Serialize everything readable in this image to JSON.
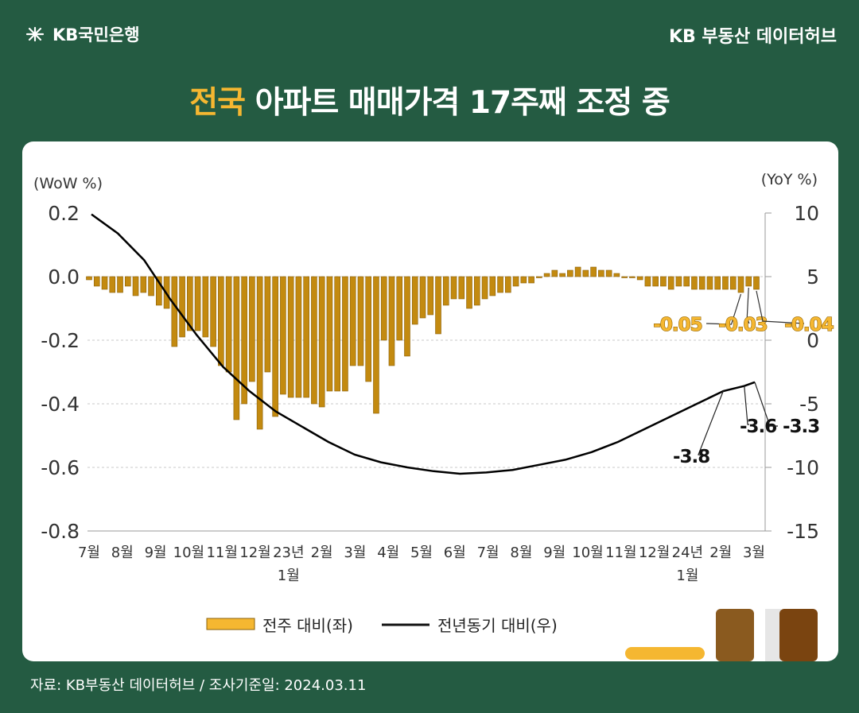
{
  "brand": {
    "logo_text": "KB국민은행",
    "right_text": "KB 부동산 데이터허브"
  },
  "headline": {
    "highlight": "전국",
    "rest": " 아파트 매매가격 17주째 조정 중"
  },
  "footer": {
    "source": "자료: KB부동산 데이터허브 / 조사기준일: 2024.03.11"
  },
  "colors": {
    "background": "#245b42",
    "bar": "#c38a10",
    "bar_border": "#8a6009",
    "line": "#000000",
    "highlight": "#f5b731"
  },
  "chart_data": {
    "type": "bar",
    "ylabel_left": "(WoW %)",
    "ylabel_right": "(YoY %)",
    "ylim_left": [
      -0.8,
      0.2
    ],
    "ylim_right": [
      -15,
      10
    ],
    "yticks_left": [
      "0.2",
      "0.0",
      "-0.2",
      "-0.4",
      "-0.6",
      "-0.8"
    ],
    "yticks_right": [
      "10",
      "5",
      "0",
      "-5",
      "-10",
      "-15"
    ],
    "grid": true,
    "x_tick_labels": [
      "7월",
      "8월",
      "9월",
      "10월",
      "11월",
      "12월",
      "23년",
      "2월",
      "3월",
      "4월",
      "5월",
      "6월",
      "7월",
      "8월",
      "9월",
      "10월",
      "11월",
      "12월",
      "24년",
      "2월",
      "3월"
    ],
    "x_tick_sublabels": [
      {
        "index": 6,
        "text": "1월"
      },
      {
        "index": 18,
        "text": "1월"
      }
    ],
    "series": [
      {
        "name": "전주 대비(좌)",
        "axis": "left",
        "type": "bar",
        "values": [
          -0.01,
          -0.03,
          -0.04,
          -0.05,
          -0.05,
          -0.03,
          -0.06,
          -0.05,
          -0.06,
          -0.09,
          -0.1,
          -0.22,
          -0.19,
          -0.17,
          -0.17,
          -0.19,
          -0.22,
          -0.28,
          -0.3,
          -0.45,
          -0.4,
          -0.33,
          -0.48,
          -0.3,
          -0.44,
          -0.37,
          -0.38,
          -0.38,
          -0.38,
          -0.4,
          -0.41,
          -0.36,
          -0.36,
          -0.36,
          -0.28,
          -0.28,
          -0.33,
          -0.43,
          -0.2,
          -0.28,
          -0.2,
          -0.25,
          -0.15,
          -0.13,
          -0.12,
          -0.18,
          -0.09,
          -0.07,
          -0.07,
          -0.1,
          -0.09,
          -0.07,
          -0.06,
          -0.05,
          -0.05,
          -0.03,
          -0.02,
          -0.02,
          0.0,
          0.01,
          0.02,
          0.01,
          0.02,
          0.03,
          0.02,
          0.03,
          0.02,
          0.02,
          0.01,
          0.0,
          0.0,
          -0.01,
          -0.03,
          -0.03,
          -0.03,
          -0.04,
          -0.03,
          -0.03,
          -0.04,
          -0.04,
          -0.04,
          -0.04,
          -0.04,
          -0.04,
          -0.05,
          -0.03,
          -0.04
        ]
      },
      {
        "name": "전년동기 대비(우)",
        "axis": "right",
        "type": "line",
        "points": [
          [
            0,
            9.9
          ],
          [
            5,
            8.4
          ],
          [
            10,
            6.3
          ],
          [
            15,
            3.2
          ],
          [
            20,
            0.4
          ],
          [
            25,
            -2.1
          ],
          [
            30,
            -4.0
          ],
          [
            35,
            -5.6
          ],
          [
            40,
            -6.8
          ],
          [
            45,
            -8.0
          ],
          [
            50,
            -9.0
          ],
          [
            55,
            -9.6
          ],
          [
            60,
            -10.0
          ],
          [
            65,
            -10.3
          ],
          [
            70,
            -10.5
          ],
          [
            75,
            -10.4
          ],
          [
            80,
            -10.2
          ],
          [
            85,
            -9.8
          ],
          [
            90,
            -9.4
          ],
          [
            95,
            -8.8
          ],
          [
            100,
            -8.0
          ],
          [
            105,
            -7.0
          ],
          [
            110,
            -6.0
          ],
          [
            115,
            -5.0
          ],
          [
            120,
            -4.0
          ],
          [
            124,
            -3.6
          ],
          [
            126,
            -3.3
          ]
        ]
      }
    ],
    "annotations": [
      {
        "series": "전주 대비(좌)",
        "text": "-0.05"
      },
      {
        "series": "전주 대비(좌)",
        "text": "-0.03"
      },
      {
        "series": "전주 대비(좌)",
        "text": "-0.04"
      },
      {
        "series": "전년동기 대비(우)",
        "text": "-3.8"
      },
      {
        "series": "전년동기 대비(우)",
        "text": "-3.6"
      },
      {
        "series": "전년동기 대비(우)",
        "text": "-3.3"
      }
    ],
    "legend": {
      "placement": "bottom",
      "items": [
        "전주 대비(좌)",
        "전년동기 대비(우)"
      ]
    }
  }
}
